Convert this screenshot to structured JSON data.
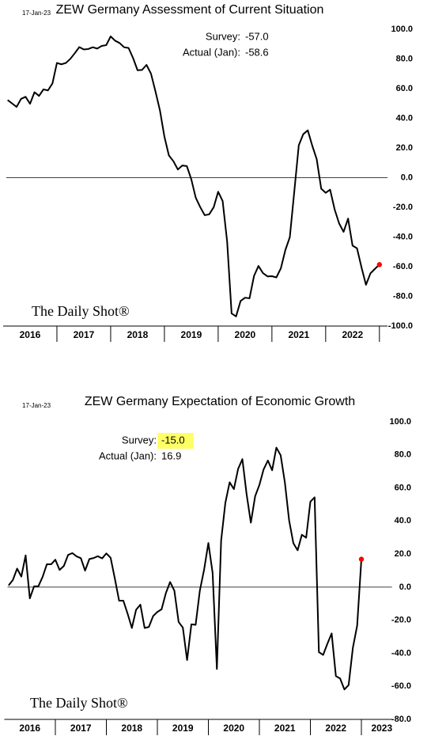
{
  "chart_data": [
    {
      "type": "line",
      "title": "ZEW Germany Assessment of Current Situation",
      "date": "17-Jan-23",
      "source": "The Daily Shot®",
      "annotations": [
        {
          "label": "Survey:",
          "value": "-57.0"
        },
        {
          "label": "Actual (Jan):",
          "value": "-58.6"
        }
      ],
      "color": "#000000",
      "last_point_color": "#ff0000",
      "x": [
        2016.083,
        2016.167,
        2016.25,
        2016.333,
        2016.417,
        2016.5,
        2016.583,
        2016.667,
        2016.75,
        2016.833,
        2016.917,
        2017.0,
        2017.083,
        2017.167,
        2017.25,
        2017.333,
        2017.417,
        2017.5,
        2017.583,
        2017.667,
        2017.75,
        2017.833,
        2017.917,
        2018.0,
        2018.083,
        2018.167,
        2018.25,
        2018.333,
        2018.417,
        2018.5,
        2018.583,
        2018.667,
        2018.75,
        2018.833,
        2018.917,
        2019.0,
        2019.083,
        2019.167,
        2019.25,
        2019.333,
        2019.417,
        2019.5,
        2019.583,
        2019.667,
        2019.75,
        2019.833,
        2019.917,
        2020.0,
        2020.083,
        2020.167,
        2020.25,
        2020.333,
        2020.417,
        2020.5,
        2020.583,
        2020.667,
        2020.75,
        2020.833,
        2020.917,
        2021.0,
        2021.083,
        2021.167,
        2021.25,
        2021.333,
        2021.417,
        2021.5,
        2021.583,
        2021.667,
        2021.75,
        2021.833,
        2021.917,
        2022.0,
        2022.083,
        2022.167,
        2022.25,
        2022.333,
        2022.417,
        2022.5,
        2022.583,
        2022.667,
        2022.75,
        2022.833,
        2022.917,
        2023.0
      ],
      "values": [
        52.3,
        50.0,
        47.7,
        53.1,
        54.5,
        49.8,
        57.6,
        55.1,
        59.5,
        58.8,
        63.5,
        77.3,
        76.4,
        77.3,
        80.1,
        83.9,
        88.0,
        86.4,
        86.7,
        87.9,
        87.0,
        88.8,
        89.3,
        95.2,
        92.3,
        90.7,
        87.9,
        87.4,
        80.6,
        72.4,
        72.6,
        76.0,
        70.1,
        58.2,
        45.3,
        27.6,
        15.0,
        11.1,
        5.5,
        8.2,
        7.8,
        -1.1,
        -13.5,
        -19.9,
        -25.3,
        -24.7,
        -19.9,
        -9.5,
        -15.7,
        -43.1,
        -91.5,
        -93.5,
        -83.1,
        -80.9,
        -81.3,
        -66.2,
        -59.5,
        -64.3,
        -66.5,
        -66.4,
        -67.2,
        -61.0,
        -48.8,
        -40.1,
        -9.1,
        21.9,
        29.3,
        31.9,
        21.6,
        12.5,
        -7.4,
        -10.2,
        -8.1,
        -21.4,
        -30.8,
        -36.5,
        -27.6,
        -45.8,
        -47.6,
        -60.5,
        -72.2,
        -64.5,
        -61.4,
        -58.6
      ],
      "xlim": [
        2016,
        2023.15
      ],
      "xticks": [
        2017,
        2018,
        2019,
        2020,
        2021,
        2022,
        2023
      ],
      "year_labels": [
        {
          "value": 2016.5,
          "label": "2016"
        },
        {
          "value": 2017.5,
          "label": "2017"
        },
        {
          "value": 2018.5,
          "label": "2018"
        },
        {
          "value": 2019.5,
          "label": "2019"
        },
        {
          "value": 2020.5,
          "label": "2020"
        },
        {
          "value": 2021.5,
          "label": "2021"
        },
        {
          "value": 2022.5,
          "label": "2022"
        }
      ],
      "ylim": [
        -100,
        100
      ],
      "reference_line": 0,
      "yticks": [
        {
          "value": 100,
          "label": "100.0"
        },
        {
          "value": 80,
          "label": "80.0"
        },
        {
          "value": 60,
          "label": "60.0"
        },
        {
          "value": 40,
          "label": "40.0"
        },
        {
          "value": 20,
          "label": "20.0"
        },
        {
          "value": 0,
          "label": "0.0"
        },
        {
          "value": -20,
          "label": "-20.0"
        },
        {
          "value": -40,
          "label": "-40.0"
        },
        {
          "value": -60,
          "label": "-60.0"
        },
        {
          "value": -80,
          "label": "-80.0"
        },
        {
          "value": -100,
          "label": "-100.0"
        }
      ]
    },
    {
      "type": "line",
      "title": "ZEW Germany Expectation of Economic Growth",
      "date": "17-Jan-23",
      "source": "The Daily Shot®",
      "annotations": [
        {
          "label": "Survey:",
          "value": "-15.0",
          "highlight": "#ffff66"
        },
        {
          "label": "Actual (Jan):",
          "value": "16.9"
        }
      ],
      "color": "#000000",
      "last_point_color": "#ff0000",
      "x": [
        2016.083,
        2016.167,
        2016.25,
        2016.333,
        2016.417,
        2016.5,
        2016.583,
        2016.667,
        2016.75,
        2016.833,
        2016.917,
        2017.0,
        2017.083,
        2017.167,
        2017.25,
        2017.333,
        2017.417,
        2017.5,
        2017.583,
        2017.667,
        2017.75,
        2017.833,
        2017.917,
        2018.0,
        2018.083,
        2018.167,
        2018.25,
        2018.333,
        2018.417,
        2018.5,
        2018.583,
        2018.667,
        2018.75,
        2018.833,
        2018.917,
        2019.0,
        2019.083,
        2019.167,
        2019.25,
        2019.333,
        2019.417,
        2019.5,
        2019.583,
        2019.667,
        2019.75,
        2019.833,
        2019.917,
        2020.0,
        2020.083,
        2020.167,
        2020.25,
        2020.333,
        2020.417,
        2020.5,
        2020.583,
        2020.667,
        2020.75,
        2020.833,
        2020.917,
        2021.0,
        2021.083,
        2021.167,
        2021.25,
        2021.333,
        2021.417,
        2021.5,
        2021.583,
        2021.667,
        2021.75,
        2021.833,
        2021.917,
        2022.0,
        2022.083,
        2022.167,
        2022.25,
        2022.333,
        2022.417,
        2022.5,
        2022.583,
        2022.667,
        2022.75,
        2022.833,
        2022.917,
        2023.0
      ],
      "values": [
        1.0,
        4.3,
        11.2,
        6.4,
        19.2,
        -6.8,
        0.5,
        0.5,
        6.2,
        13.8,
        13.8,
        16.6,
        10.4,
        12.8,
        19.5,
        20.6,
        18.6,
        17.5,
        10.0,
        17.0,
        17.6,
        18.7,
        17.4,
        20.4,
        17.8,
        5.1,
        -8.2,
        -8.2,
        -16.1,
        -24.7,
        -13.7,
        -10.6,
        -24.7,
        -24.1,
        -17.5,
        -15.0,
        -13.4,
        -3.6,
        3.1,
        -2.1,
        -21.1,
        -24.5,
        -44.1,
        -22.5,
        -22.8,
        -2.1,
        10.7,
        26.7,
        8.7,
        -49.5,
        28.2,
        51.0,
        63.4,
        59.3,
        71.5,
        77.4,
        56.1,
        39.0,
        55.0,
        61.8,
        71.2,
        76.6,
        70.7,
        84.4,
        79.8,
        63.3,
        40.4,
        26.5,
        22.3,
        31.7,
        29.9,
        51.7,
        54.3,
        -39.3,
        -41.0,
        -34.3,
        -28.0,
        -53.8,
        -55.3,
        -61.9,
        -59.2,
        -36.7,
        -23.3,
        16.9
      ],
      "xlim": [
        2016,
        2023.6
      ],
      "xticks": [
        2017,
        2018,
        2019,
        2020,
        2021,
        2022,
        2023
      ],
      "year_labels": [
        {
          "value": 2016.5,
          "label": "2016"
        },
        {
          "value": 2017.5,
          "label": "2017"
        },
        {
          "value": 2018.5,
          "label": "2018"
        },
        {
          "value": 2019.5,
          "label": "2019"
        },
        {
          "value": 2020.5,
          "label": "2020"
        },
        {
          "value": 2021.5,
          "label": "2021"
        },
        {
          "value": 2022.5,
          "label": "2022"
        },
        {
          "value": 2023.4,
          "label": "2023"
        }
      ],
      "ylim": [
        -80,
        100
      ],
      "reference_line": 0,
      "yticks": [
        {
          "value": 100,
          "label": "100.0"
        },
        {
          "value": 80,
          "label": "80.0"
        },
        {
          "value": 60,
          "label": "60.0"
        },
        {
          "value": 40,
          "label": "40.0"
        },
        {
          "value": 20,
          "label": "20.0"
        },
        {
          "value": 0,
          "label": "0.0"
        },
        {
          "value": -20,
          "label": "-20.0"
        },
        {
          "value": -40,
          "label": "-40.0"
        },
        {
          "value": -60,
          "label": "-60.0"
        },
        {
          "value": -80,
          "label": "-80.0"
        }
      ]
    }
  ]
}
